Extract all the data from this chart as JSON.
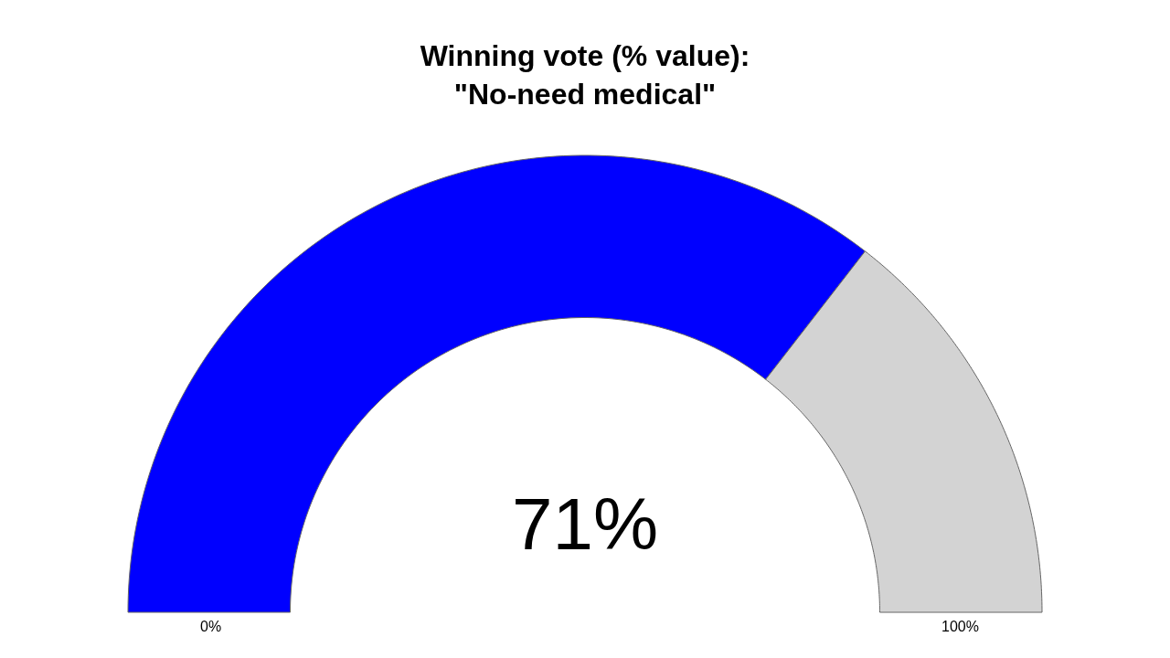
{
  "chart_data": {
    "type": "donut",
    "title": "Winning vote (% value):\n\"No-need medical\"",
    "categories": [
      null,
      null
    ],
    "values": [
      71,
      29
    ],
    "colors": [
      "#0000ff",
      "#d3d3d3"
    ],
    "annotations": [
      "71%",
      "0%",
      "100%"
    ]
  }
}
